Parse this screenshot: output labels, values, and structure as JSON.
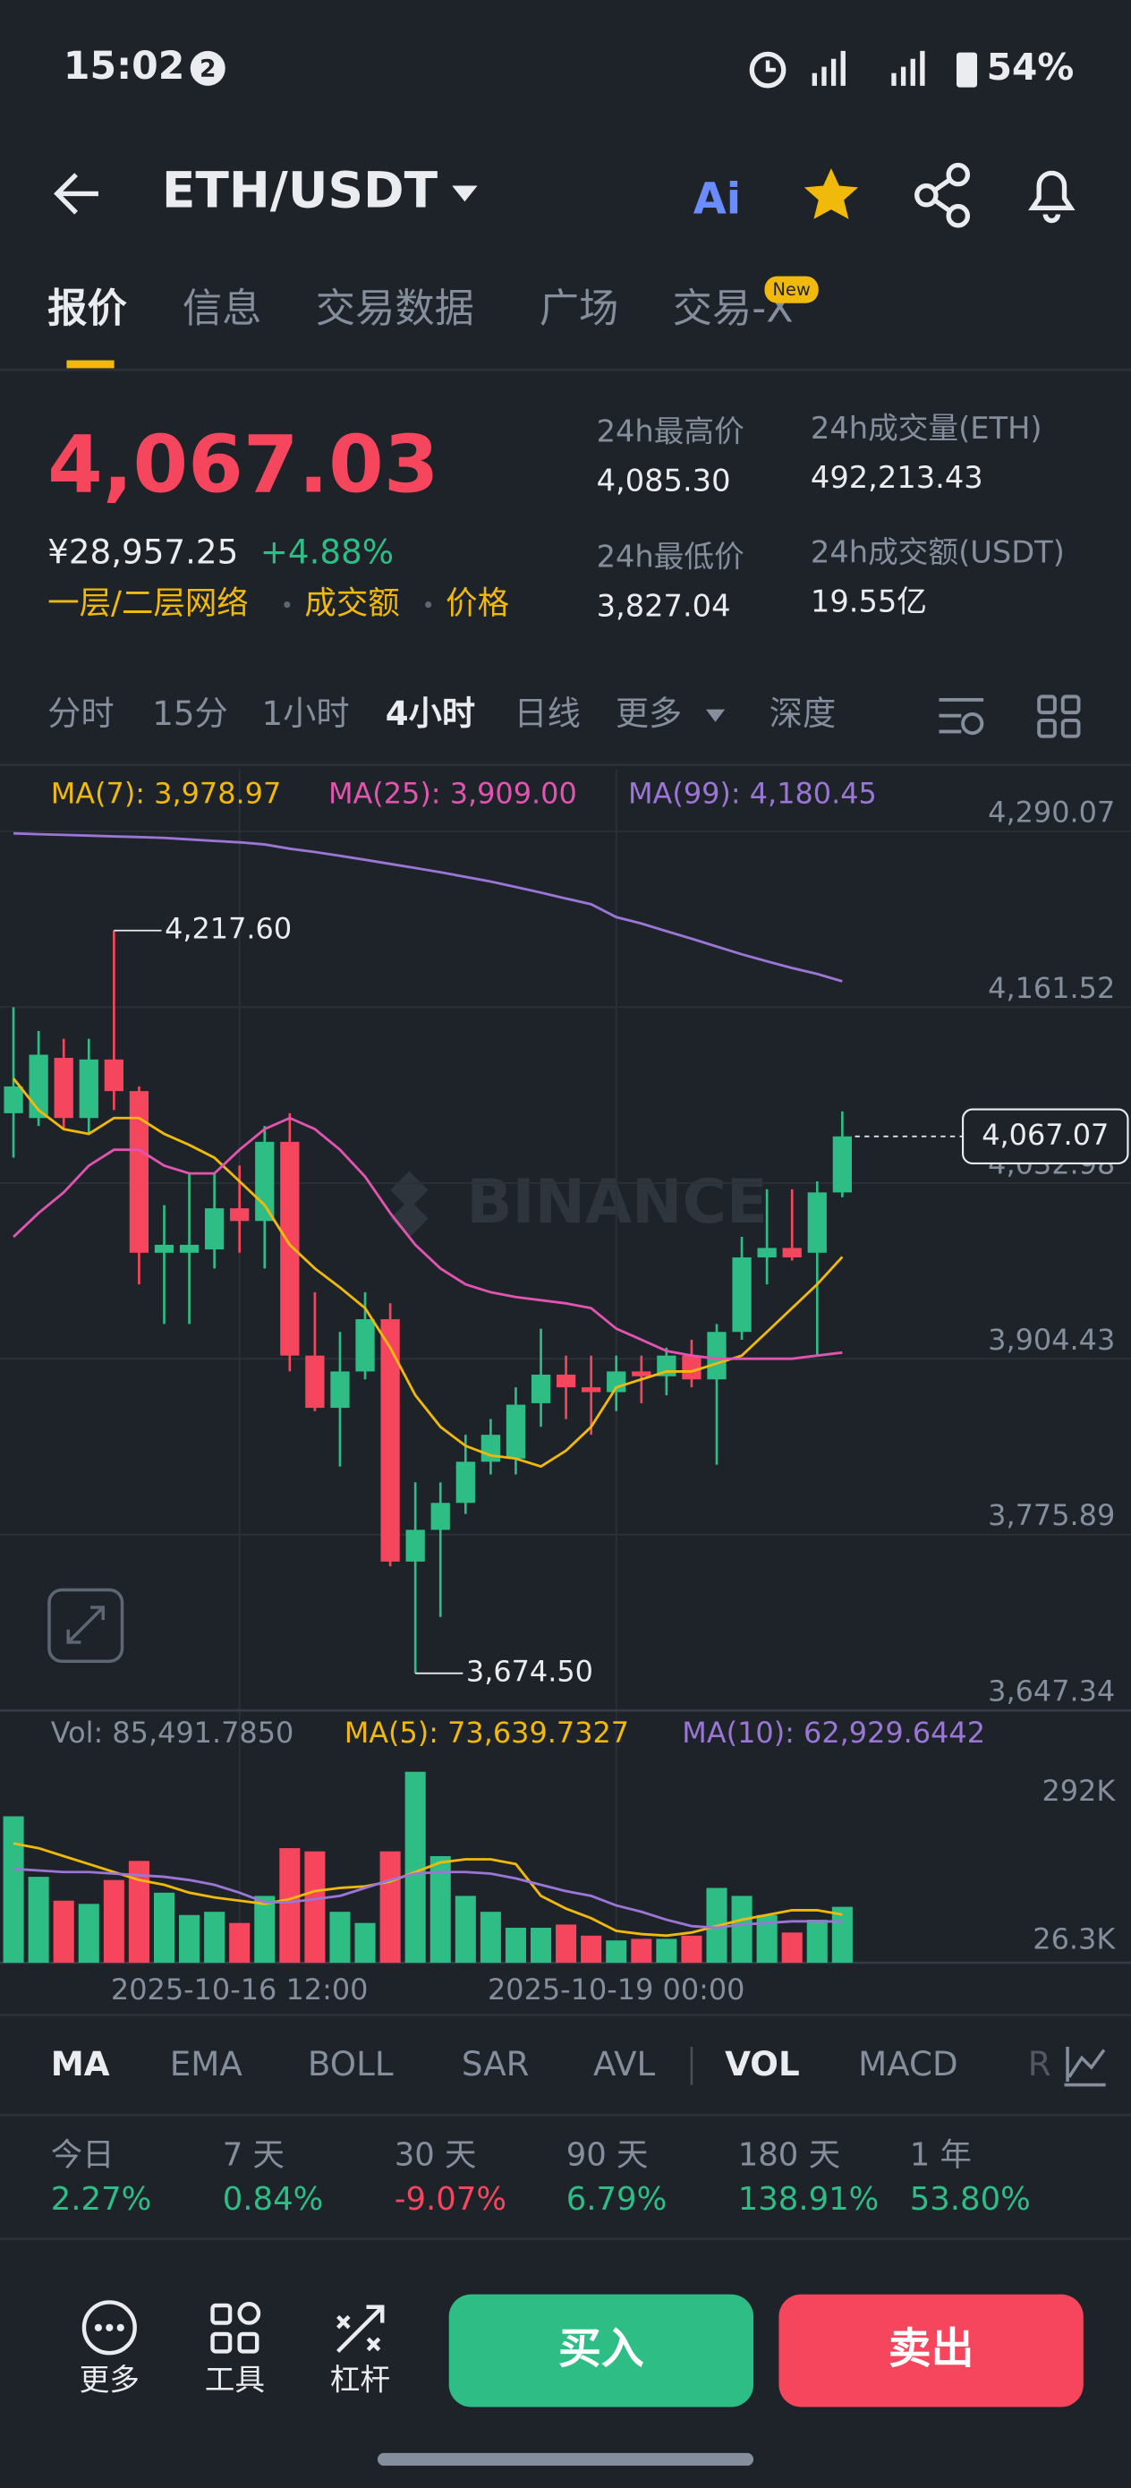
{
  "status_bar": {
    "time": "15:02",
    "notification_count": "2",
    "battery": "54%"
  },
  "header": {
    "pair": "ETH/USDT",
    "ai_badge": "Ai"
  },
  "tabs": [
    "报价",
    "信息",
    "交易数据",
    "广场",
    "交易-X"
  ],
  "active_tab": 0,
  "tab_badge": "New",
  "price": {
    "last": "4,067.03",
    "cny": "¥28,957.25",
    "change": "+4.88%",
    "tags": [
      "一层/二层网络",
      "成交额",
      "价格"
    ]
  },
  "stats": [
    {
      "label": "24h最高价",
      "value": "4,085.30"
    },
    {
      "label": "24h成交量(ETH)",
      "value": "492,213.43"
    },
    {
      "label": "24h最低价",
      "value": "3,827.04"
    },
    {
      "label": "24h成交额(USDT)",
      "value": "19.55亿"
    }
  ],
  "intervals": [
    "分时",
    "15分",
    "1小时",
    "4小时",
    "日线",
    "更多",
    "深度"
  ],
  "active_interval": 3,
  "watermark": "BINANCE",
  "chart_data": [
    {
      "type": "candlestick",
      "x": [
        "2025-10-15 00:00",
        "2025-10-15 04:00",
        "2025-10-15 08:00",
        "2025-10-15 12:00",
        "2025-10-15 16:00",
        "2025-10-15 20:00",
        "2025-10-16 00:00",
        "2025-10-16 04:00",
        "2025-10-16 08:00",
        "2025-10-16 12:00",
        "2025-10-16 16:00",
        "2025-10-16 20:00",
        "2025-10-17 00:00",
        "2025-10-17 04:00",
        "2025-10-17 08:00",
        "2025-10-17 12:00",
        "2025-10-17 16:00",
        "2025-10-17 20:00",
        "2025-10-18 00:00",
        "2025-10-18 04:00",
        "2025-10-18 08:00",
        "2025-10-18 12:00",
        "2025-10-18 16:00",
        "2025-10-18 20:00",
        "2025-10-19 00:00",
        "2025-10-19 04:00",
        "2025-10-19 08:00",
        "2025-10-19 12:00",
        "2025-10-19 16:00",
        "2025-10-19 20:00",
        "2025-10-20 00:00",
        "2025-10-20 04:00",
        "2025-10-20 08:00",
        "2025-10-20 12:00"
      ],
      "open": [
        4084.0,
        4080.5,
        4124.5,
        4080.5,
        4123.3,
        4100.2,
        3982.0,
        3982.0,
        3984.4,
        4014.5,
        4005.2,
        4063.1,
        3906.8,
        3868.6,
        3895.2,
        3933.4,
        3756.2,
        3779.4,
        3799.1,
        3829.2,
        3831.5,
        3872.0,
        3892.9,
        3883.6,
        3880.1,
        3895.2,
        3891.7,
        3906.8,
        3889.4,
        3924.1,
        3978.6,
        3985.5,
        3982.0,
        4026.1
      ],
      "high": [
        4161.5,
        4144.1,
        4138.4,
        4138.4,
        4217.6,
        4103.6,
        4016.8,
        4040.0,
        4040.0,
        4045.7,
        4074.7,
        4084.0,
        3953.1,
        3924.1,
        3953.1,
        3945.0,
        3814.1,
        3814.1,
        3848.9,
        3860.4,
        3883.6,
        3926.5,
        3906.8,
        3906.8,
        3906.8,
        3906.8,
        3912.6,
        3918.4,
        3929.9,
        3993.6,
        4028.4,
        4028.4,
        4034.2,
        4085.3
      ],
      "low": [
        4051.5,
        4074.7,
        4072.4,
        4068.9,
        4086.3,
        3958.9,
        3929.9,
        3929.9,
        3970.5,
        3982.0,
        3970.5,
        3895.2,
        3866.2,
        3825.7,
        3889.4,
        3752.7,
        3674.5,
        3715.7,
        3791.0,
        3819.9,
        3819.9,
        3854.7,
        3860.4,
        3848.9,
        3866.2,
        3872.0,
        3877.8,
        3883.6,
        3827.04,
        3918.4,
        3958.9,
        3976.3,
        3906.8,
        4022.6
      ],
      "close": [
        4103.6,
        4126.8,
        4080.5,
        4123.3,
        4100.2,
        3982.0,
        3987.8,
        3987.8,
        4014.5,
        4005.2,
        4063.1,
        3906.8,
        3868.6,
        3895.2,
        3933.4,
        3756.2,
        3779.4,
        3799.1,
        3829.2,
        3848.9,
        3870.9,
        3892.9,
        3883.6,
        3880.1,
        3895.2,
        3891.7,
        3906.8,
        3889.4,
        3924.1,
        3978.6,
        3985.5,
        3978.6,
        4026.1,
        4067.07
      ],
      "up_color": "#2ebd85",
      "down_color": "#f6465d",
      "ylim": [
        3647.34,
        4335.24
      ],
      "yticks": [
        {
          "value": 4290.07,
          "label": "4,290.07"
        },
        {
          "value": 4161.52,
          "label": "4,161.52"
        },
        {
          "value": 4032.98,
          "label": "4,032.98"
        },
        {
          "value": 3904.43,
          "label": "3,904.43"
        },
        {
          "value": 3775.89,
          "label": "3,775.89"
        },
        {
          "value": 3647.34,
          "label": "3,647.34"
        }
      ],
      "xticks": [
        "2025-10-16 12:00",
        "2025-10-19 00:00"
      ],
      "grid": true,
      "series": [
        {
          "name": "MA(7): 3,978.97",
          "color": "#f0b90b",
          "values": [
            4109.4,
            4086.3,
            4072.4,
            4068.9,
            4080.5,
            4080.5,
            4068.9,
            4060.8,
            4051.5,
            4034.2,
            4016.8,
            3987.8,
            3970.5,
            3956.6,
            3941.5,
            3912.6,
            3877.8,
            3854.7,
            3840.8,
            3833.8,
            3831.5,
            3825.7,
            3837.3,
            3854.7,
            3883.6,
            3889.4,
            3895.2,
            3895.2,
            3901.0,
            3906.8,
            3924.1,
            3941.5,
            3958.9,
            3978.97
          ]
        },
        {
          "name": "MA(25): 3,909.00",
          "color": "#e155b1",
          "values": [
            3993.6,
            4011.0,
            4026.1,
            4045.7,
            4057.3,
            4057.3,
            4045.7,
            4040.0,
            4040.0,
            4057.3,
            4072.4,
            4080.5,
            4072.4,
            4057.3,
            4037.6,
            4011.0,
            3987.8,
            3970.5,
            3958.9,
            3953.1,
            3949.6,
            3947.3,
            3945.0,
            3941.5,
            3926.5,
            3918.4,
            3910.2,
            3906.8,
            3904.5,
            3904.5,
            3904.5,
            3904.5,
            3906.8,
            3909.0
          ]
        },
        {
          "name": "MA(99): 4,180.45",
          "color": "#9b76d6",
          "values": [
            4288.6,
            4288.0,
            4287.5,
            4287.0,
            4286.4,
            4285.9,
            4285.3,
            4284.2,
            4283.1,
            4282.1,
            4280.5,
            4277.4,
            4275.0,
            4272.2,
            4269.3,
            4266.3,
            4263.3,
            4260.2,
            4256.8,
            4253.4,
            4249.4,
            4245.3,
            4241.0,
            4236.8,
            4227.4,
            4222.7,
            4217.1,
            4211.6,
            4205.9,
            4200.2,
            4195.1,
            4190.2,
            4185.8,
            4180.45
          ]
        }
      ],
      "max_label": "4,217.60",
      "min_label": "3,674.50",
      "last_label": "4,067.07"
    },
    {
      "type": "bar",
      "values": [
        223900,
        131400,
        94900,
        90000,
        126500,
        155700,
        107100,
        73000,
        77900,
        60800,
        102200,
        175200,
        170300,
        77900,
        60800,
        170300,
        292000,
        163000,
        102200,
        77900,
        53500,
        53500,
        58400,
        41400,
        34100,
        36500,
        36500,
        41400,
        114400,
        102200,
        73000,
        46200,
        65700,
        85491.785
      ],
      "name": "Vol: 85,491.7850",
      "ylim": [
        0,
        330000
      ],
      "yticks": [
        {
          "value": 292000,
          "label": "292K"
        },
        {
          "value": 26300,
          "label": "26.3K"
        }
      ],
      "series": [
        {
          "name": "MA(5): 73,639.7327",
          "color": "#f0b90b",
          "values": [
            182500,
            175200,
            163000,
            150900,
            138700,
            126500,
            119200,
            107100,
            99800,
            94900,
            90000,
            97300,
            109500,
            114400,
            116800,
            124100,
            138700,
            153300,
            158200,
            158200,
            150900,
            102200,
            82700,
            68100,
            48700,
            43800,
            41400,
            46200,
            56000,
            65700,
            73000,
            80300,
            80300,
            73639.7327
          ]
        },
        {
          "name": "MA(10): 62,929.6442",
          "color": "#9b76d6",
          "values": [
            143600,
            141100,
            138700,
            138700,
            136300,
            133800,
            131400,
            126500,
            119200,
            107100,
            92500,
            92500,
            97300,
            102200,
            114400,
            126500,
            136300,
            138700,
            138700,
            136300,
            129000,
            119200,
            109500,
            102200,
            87600,
            77900,
            65700,
            56000,
            53500,
            58400,
            60800,
            63300,
            63300,
            62929.6442
          ]
        }
      ]
    }
  ],
  "indicators": [
    "MA",
    "EMA",
    "BOLL",
    "SAR",
    "AVL",
    "VOL",
    "MACD",
    "R"
  ],
  "active_indicators": [
    0,
    5
  ],
  "performance": [
    {
      "label": "今日",
      "value": "2.27%"
    },
    {
      "label": "7 天",
      "value": "0.84%"
    },
    {
      "label": "30 天",
      "value": "-9.07%"
    },
    {
      "label": "90 天",
      "value": "6.79%"
    },
    {
      "label": "180 天",
      "value": "138.91%"
    },
    {
      "label": "1 年",
      "value": "53.80%"
    }
  ],
  "actions": [
    "更多",
    "工具",
    "杠杆"
  ],
  "buy": "买入",
  "sell": "卖出"
}
